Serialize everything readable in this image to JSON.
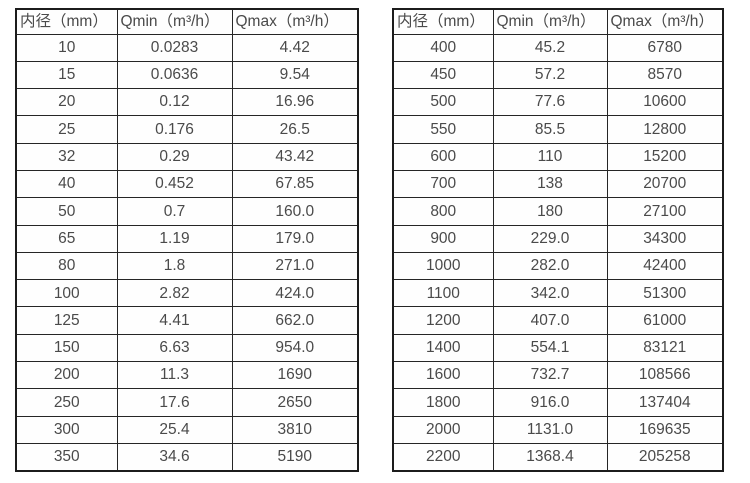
{
  "page": {
    "background_color": "#ffffff",
    "text_color": "#4a4a4a",
    "border_color": "#262626"
  },
  "tables": [
    {
      "name": "flow-range-table-small-diameters",
      "headers": [
        "内径（mm）",
        "Qmin（m³/h）",
        "Qmax（m³/h）"
      ],
      "rows": [
        [
          "10",
          "0.0283",
          "4.42"
        ],
        [
          "15",
          "0.0636",
          "9.54"
        ],
        [
          "20",
          "0.12",
          "16.96"
        ],
        [
          "25",
          "0.176",
          "26.5"
        ],
        [
          "32",
          "0.29",
          "43.42"
        ],
        [
          "40",
          "0.452",
          "67.85"
        ],
        [
          "50",
          "0.7",
          "160.0"
        ],
        [
          "65",
          "1.19",
          "179.0"
        ],
        [
          "80",
          "1.8",
          "271.0"
        ],
        [
          "100",
          "2.82",
          "424.0"
        ],
        [
          "125",
          "4.41",
          "662.0"
        ],
        [
          "150",
          "6.63",
          "954.0"
        ],
        [
          "200",
          "11.3",
          "1690"
        ],
        [
          "250",
          "17.6",
          "2650"
        ],
        [
          "300",
          "25.4",
          "3810"
        ],
        [
          "350",
          "34.6",
          "5190"
        ]
      ]
    },
    {
      "name": "flow-range-table-large-diameters",
      "headers": [
        "内径（mm）",
        "Qmin（m³/h）",
        "Qmax（m³/h）"
      ],
      "rows": [
        [
          "400",
          "45.2",
          "6780"
        ],
        [
          "450",
          "57.2",
          "8570"
        ],
        [
          "500",
          "77.6",
          "10600"
        ],
        [
          "550",
          "85.5",
          "12800"
        ],
        [
          "600",
          "110",
          "15200"
        ],
        [
          "700",
          "138",
          "20700"
        ],
        [
          "800",
          "180",
          "27100"
        ],
        [
          "900",
          "229.0",
          "34300"
        ],
        [
          "1000",
          "282.0",
          "42400"
        ],
        [
          "1100",
          "342.0",
          "51300"
        ],
        [
          "1200",
          "407.0",
          "61000"
        ],
        [
          "1400",
          "554.1",
          "83121"
        ],
        [
          "1600",
          "732.7",
          "108566"
        ],
        [
          "1800",
          "916.0",
          "137404"
        ],
        [
          "2000",
          "1131.0",
          "169635"
        ],
        [
          "2200",
          "1368.4",
          "205258"
        ]
      ]
    }
  ]
}
